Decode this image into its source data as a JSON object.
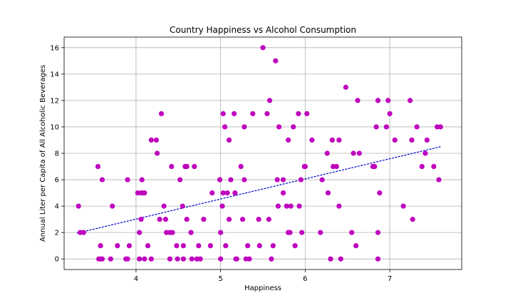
{
  "chart_data": {
    "type": "scatter",
    "title": "Country Happiness vs Alcohol Consumption",
    "xlabel": "Happiness",
    "ylabel": "Annual Liter per Capita of All Alcoholic Beverages",
    "xlim": [
      3.15,
      7.85
    ],
    "ylim": [
      -0.8,
      16.8
    ],
    "xticks": [
      4,
      5,
      6,
      7
    ],
    "yticks": [
      0,
      2,
      4,
      6,
      8,
      10,
      12,
      14,
      16
    ],
    "grid": true,
    "colors": {
      "points": "#bf00bf",
      "trend": "#0000cc"
    },
    "trendline": {
      "x": [
        3.3,
        7.6
      ],
      "y": [
        1.95,
        8.5
      ],
      "style": "dashed"
    },
    "points": [
      [
        3.32,
        4
      ],
      [
        3.34,
        2
      ],
      [
        3.38,
        2
      ],
      [
        3.55,
        7
      ],
      [
        3.56,
        0
      ],
      [
        3.58,
        1
      ],
      [
        3.58,
        0
      ],
      [
        3.6,
        6
      ],
      [
        3.6,
        0
      ],
      [
        3.7,
        0
      ],
      [
        3.72,
        4
      ],
      [
        3.78,
        1
      ],
      [
        3.88,
        0
      ],
      [
        3.9,
        6
      ],
      [
        3.9,
        0
      ],
      [
        3.92,
        1
      ],
      [
        4.02,
        5
      ],
      [
        4.04,
        0
      ],
      [
        4.04,
        2
      ],
      [
        4.06,
        5
      ],
      [
        4.06,
        3
      ],
      [
        4.07,
        6
      ],
      [
        4.08,
        5
      ],
      [
        4.1,
        5
      ],
      [
        4.1,
        0
      ],
      [
        4.14,
        1
      ],
      [
        4.18,
        0
      ],
      [
        4.18,
        9
      ],
      [
        4.24,
        9
      ],
      [
        4.25,
        8
      ],
      [
        4.28,
        3
      ],
      [
        4.3,
        11
      ],
      [
        4.33,
        4
      ],
      [
        4.35,
        3
      ],
      [
        4.36,
        2
      ],
      [
        4.4,
        0
      ],
      [
        4.4,
        2
      ],
      [
        4.42,
        7
      ],
      [
        4.43,
        2
      ],
      [
        4.48,
        1
      ],
      [
        4.49,
        0
      ],
      [
        4.52,
        6
      ],
      [
        4.55,
        4
      ],
      [
        4.56,
        1
      ],
      [
        4.56,
        0
      ],
      [
        4.58,
        7
      ],
      [
        4.6,
        3
      ],
      [
        4.6,
        7
      ],
      [
        4.65,
        2
      ],
      [
        4.66,
        0
      ],
      [
        4.69,
        7
      ],
      [
        4.72,
        0
      ],
      [
        4.74,
        1
      ],
      [
        4.76,
        0
      ],
      [
        4.8,
        3
      ],
      [
        4.88,
        1
      ],
      [
        4.9,
        5
      ],
      [
        4.99,
        6
      ],
      [
        5.0,
        2
      ],
      [
        5.0,
        0
      ],
      [
        5.02,
        4
      ],
      [
        5.03,
        11
      ],
      [
        5.03,
        5
      ],
      [
        5.05,
        10
      ],
      [
        5.06,
        1
      ],
      [
        5.08,
        5
      ],
      [
        5.1,
        9
      ],
      [
        5.1,
        3
      ],
      [
        5.12,
        6
      ],
      [
        5.16,
        11
      ],
      [
        5.17,
        5
      ],
      [
        5.18,
        0
      ],
      [
        5.19,
        0
      ],
      [
        5.24,
        7
      ],
      [
        5.26,
        3
      ],
      [
        5.28,
        6
      ],
      [
        5.28,
        10
      ],
      [
        5.3,
        0
      ],
      [
        5.32,
        1
      ],
      [
        5.34,
        0
      ],
      [
        5.38,
        11
      ],
      [
        5.45,
        3
      ],
      [
        5.46,
        1
      ],
      [
        5.5,
        16
      ],
      [
        5.55,
        11
      ],
      [
        5.57,
        3
      ],
      [
        5.58,
        12
      ],
      [
        5.6,
        0
      ],
      [
        5.62,
        1
      ],
      [
        5.65,
        15
      ],
      [
        5.67,
        6
      ],
      [
        5.68,
        4
      ],
      [
        5.69,
        10
      ],
      [
        5.74,
        6
      ],
      [
        5.74,
        5
      ],
      [
        5.78,
        4
      ],
      [
        5.8,
        2
      ],
      [
        5.8,
        9
      ],
      [
        5.82,
        2
      ],
      [
        5.83,
        4
      ],
      [
        5.86,
        10
      ],
      [
        5.88,
        1
      ],
      [
        5.92,
        11
      ],
      [
        5.93,
        4
      ],
      [
        5.95,
        6
      ],
      [
        5.96,
        2
      ],
      [
        5.99,
        7
      ],
      [
        6.0,
        7
      ],
      [
        6.02,
        11
      ],
      [
        6.08,
        9
      ],
      [
        6.18,
        2
      ],
      [
        6.2,
        6
      ],
      [
        6.26,
        8
      ],
      [
        6.27,
        5
      ],
      [
        6.3,
        0
      ],
      [
        6.32,
        9
      ],
      [
        6.33,
        7
      ],
      [
        6.37,
        7
      ],
      [
        6.4,
        4
      ],
      [
        6.4,
        9
      ],
      [
        6.42,
        0
      ],
      [
        6.48,
        13
      ],
      [
        6.55,
        2
      ],
      [
        6.57,
        8
      ],
      [
        6.6,
        1
      ],
      [
        6.62,
        12
      ],
      [
        6.64,
        8
      ],
      [
        6.8,
        7
      ],
      [
        6.82,
        7
      ],
      [
        6.84,
        10
      ],
      [
        6.86,
        12
      ],
      [
        6.86,
        2
      ],
      [
        6.86,
        0
      ],
      [
        6.88,
        5
      ],
      [
        6.96,
        10
      ],
      [
        6.98,
        12
      ],
      [
        7.0,
        11
      ],
      [
        7.06,
        9
      ],
      [
        7.16,
        4
      ],
      [
        7.24,
        12
      ],
      [
        7.26,
        9
      ],
      [
        7.27,
        3
      ],
      [
        7.32,
        10
      ],
      [
        7.38,
        7
      ],
      [
        7.42,
        8
      ],
      [
        7.44,
        9
      ],
      [
        7.52,
        7
      ],
      [
        7.56,
        10
      ],
      [
        7.58,
        6
      ],
      [
        7.6,
        10
      ]
    ]
  }
}
